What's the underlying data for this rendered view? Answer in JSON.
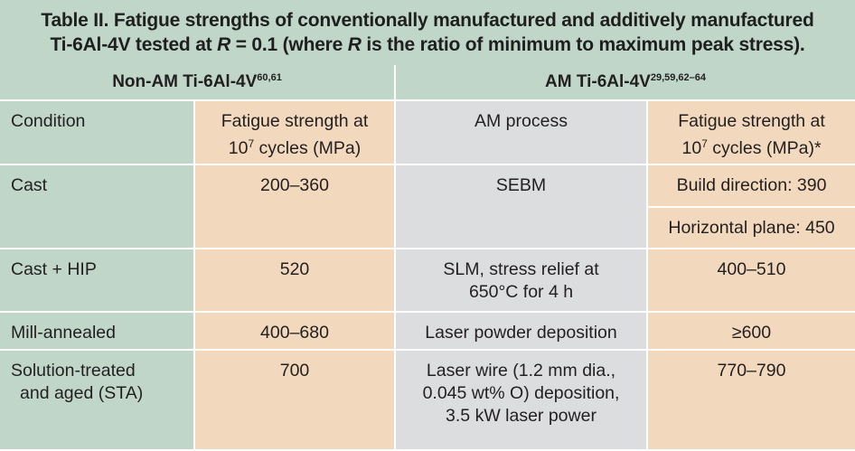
{
  "title": {
    "line1": "Table II.  Fatigue strengths of conventionally manufactured and additively manufactured",
    "line2_a": "Ti-6Al-4V tested at ",
    "line2_r": "R",
    "line2_b": " = 0.1 (where ",
    "line2_r2": "R",
    "line2_c": " is the ratio of minimum to maximum peak stress)."
  },
  "headers": {
    "non_am": "Non-AM Ti-6Al-4V",
    "non_am_refs": "60,61",
    "am": "AM Ti-6Al-4V",
    "am_refs": "29,59,62–64"
  },
  "columns": {
    "condition": "Condition",
    "fatigue_a1": "Fatigue strength at",
    "fatigue_a2": "10",
    "fatigue_exp": "7",
    "fatigue_a3": " cycles (MPa)",
    "am_process": "AM process",
    "fatigue_b1": "Fatigue strength at",
    "fatigue_b2": "10",
    "fatigue_b_exp": "7",
    "fatigue_b3": " cycles (MPa)*"
  },
  "rows": [
    {
      "condition": "Cast",
      "strength": "200–360",
      "process": "SEBM",
      "am_strength_1": "Build direction: 390",
      "am_strength_2": "Horizontal plane: 450"
    },
    {
      "condition": "Cast + HIP",
      "strength": "520",
      "process_1": "SLM, stress relief at",
      "process_2": "650°C for 4 h",
      "am_strength": "400–510"
    },
    {
      "condition": "Mill-annealed",
      "strength": "400–680",
      "process": "Laser powder deposition",
      "am_strength": "≥600"
    },
    {
      "condition_1": "Solution-treated",
      "condition_2": "and aged (STA)",
      "strength": "700",
      "process_1": "Laser wire (1.2 mm dia.,",
      "process_2": "0.045 wt% O) deposition,",
      "process_3": "3.5 kW laser power",
      "am_strength": "770–790"
    }
  ],
  "colors": {
    "green": "#bfd6c9",
    "tan": "#f2d8bd",
    "gray": "#dcdddf"
  }
}
